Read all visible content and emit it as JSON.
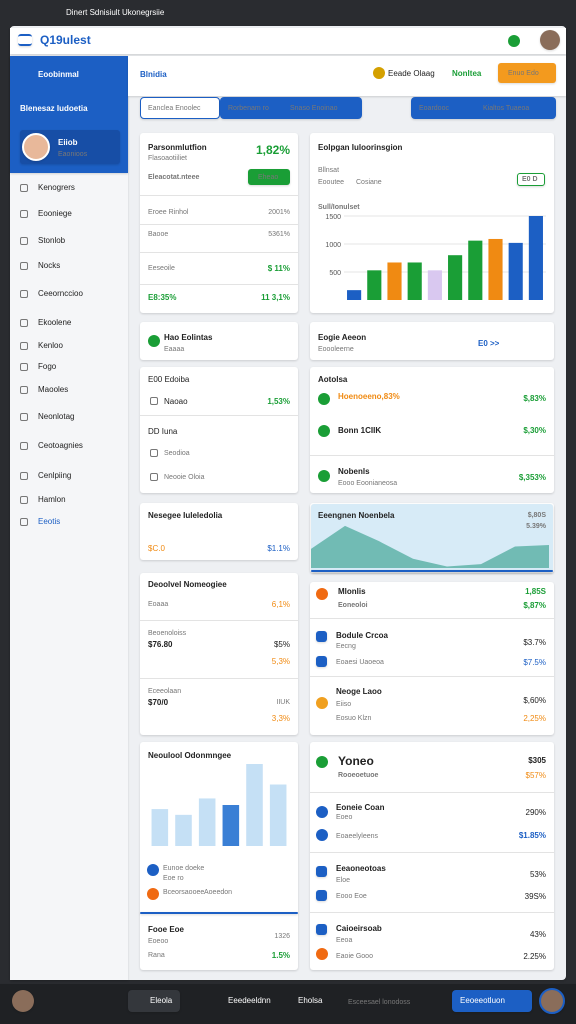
{
  "browser": {
    "tab": "Dinert Sdnisiult Ukonegrsiie"
  },
  "header": {
    "logo": "Q19ulest"
  },
  "sidebar": {
    "top": "Eoobinmal",
    "section": "Blenesaz Iudoetia",
    "profile_name": "Eiiob",
    "profile_sub": "Eaonioos",
    "items": [
      "Kenogrers",
      "Eooniege",
      "Stonlob",
      "Nocks",
      "Ceeornccioo",
      "Ekoolene",
      "Kenloo",
      "Fogo",
      "Maooles",
      "Neonlotag",
      "Ceotoagnies",
      "Cenlpiing",
      "Hamlon",
      "Eeotis"
    ]
  },
  "toolbar": {
    "title": "Blnidia",
    "tab_active": "Eanclea Enoolec",
    "tab_2": "Rorbenam ro",
    "tab_3": "Snaso Enoinao",
    "link_1": "Eeade Olaag",
    "link_2": "Nonltea",
    "button": "Enuo Edo",
    "select": "Eoardooc",
    "select_2": "Kialtos Tuaeoa"
  },
  "cards": {
    "l1": {
      "title": "Parsonmlutfion",
      "value": "1,82%",
      "sub": "Flasoaotiiliet",
      "link": "Eleacotat.nteee",
      "button": "Eheao",
      "rows": [
        [
          "Eroee Rinhol",
          "2001%"
        ],
        [
          "Baooe",
          "5361%"
        ],
        [
          "Eeseoile",
          "$ 11%"
        ]
      ],
      "foot": "E8:35%",
      "foot_value": "11 3,1%"
    },
    "r1": {
      "title": "Eolpgan Iuloorinsgion",
      "sub": "Bllnsat",
      "sub_2": "Eooutee",
      "sub_3": "Cosiane",
      "badge": "E0 D"
    },
    "l2": {
      "title": "Hao Eolintas",
      "sub": "Eaaaa"
    },
    "r2": {
      "title": "Eogie Aeeon",
      "sub": "Eoooleerne",
      "link": "E0 >>"
    },
    "l3": {
      "head_1": "E00 Edoiba",
      "item_1": "Naoao",
      "value_1": "1,53%",
      "head_2": "DD Iuna",
      "item_2": "Seodioa",
      "item_3": "Neooie Oloia"
    },
    "r3": {
      "title": "Aotolsa",
      "row_1": "Hoenoeeno,83%",
      "value_1": "$,83%",
      "row_2": "Bonn 1CIIK",
      "value_2": "$,30%",
      "row_3": "Nobenls",
      "value_3": "$,353%",
      "row_3_sub": "Eooo Eoonianeosa"
    },
    "l4": {
      "title": "Nesegee Iuleledolia",
      "left": "$C.0",
      "right": "$1.1%"
    },
    "r4": {
      "title": "Eeengnen Noenbela",
      "value": "$,80S",
      "value_2": "5.39%"
    },
    "l5": {
      "title": "Deoolvel Nomeogiee",
      "row_1": "Eoaaa",
      "value_1": "6,1%",
      "row_2": "Beoenoloiss",
      "amount_2": "$76.80",
      "value_2": "$5%",
      "value_2b": "5,3%",
      "row_3": "Eceeolaan",
      "amount_3": "$70/0",
      "value_3": "IIUK",
      "value_3b": "3,3%"
    },
    "r5": {
      "row_1": "Mlonlis",
      "value_1": "1,85S",
      "sub_1": "Eoneoloi",
      "value_1b": "$,87%",
      "row_2": "Bodule Crcoa",
      "sub_2": "Eecng",
      "value_2": "$3.7%",
      "row_2b": "Eoaesi Uaoeoa",
      "value_2b": "$7.5%",
      "row_3": "Neoge Laoo",
      "sub_3": "Eiiso",
      "value_3": "$,60%",
      "row_3b": "Eosuo Klzn",
      "value_3b": "2,25%"
    },
    "l6": {
      "title": "Neoulool Odonmngee",
      "item_1": "Eunoe doeke",
      "item_1_sub": "Eoe ro",
      "item_2": "Bceorsaooee",
      "item_2b": "Aoeedon",
      "row_1": "Fooe Eoe",
      "value_1": "1326",
      "row_1_sub": "Eoeoo",
      "row_2": "Rana",
      "value_2": "1.5%"
    },
    "r6": {
      "row_1": "Yoneo",
      "value_1": "$305",
      "sub_1": "Rooeoetuoe",
      "value_1b": "$57%",
      "row_2": "Eoneie Coan",
      "value_2": "290%",
      "sub_2": "Eoeo",
      "row_2b": "Eoaeelyleens",
      "value_2b": "$1.85%",
      "row_3": "Eeaoneotoas",
      "value_3": "53%",
      "sub_3": "Eloe",
      "row_3b": "Eooo Eoe",
      "value_3b": "39S%",
      "row_4": "Caioeirsoab",
      "value_4": "43%",
      "sub_4": "Eeoa",
      "row_4b": "Eaoie Gooo",
      "value_4b": "2.25%"
    }
  },
  "charts": {
    "summary": {
      "type": "bar",
      "title": "Sull/Ionulset",
      "values": [
        176,
        530,
        670,
        670,
        530,
        800,
        1060,
        1090,
        1020,
        1500
      ],
      "colors": [
        "#1c5fc4",
        "#1a9e36",
        "#f08a12",
        "#1a9e36",
        "#d9c8f0",
        "#1a9e36",
        "#1a9e36",
        "#f08a12",
        "#1c5fc4",
        "#1c5fc4"
      ],
      "ylim": [
        0,
        1500
      ],
      "yticks": [
        500,
        1000,
        1500
      ]
    },
    "trend": {
      "type": "area",
      "values": [
        25,
        55,
        35,
        12,
        2,
        5,
        28,
        30
      ],
      "ylim": [
        0,
        60
      ],
      "color": "#5fb3a8"
    },
    "weekly": {
      "type": "bar",
      "values": [
        45,
        38,
        58,
        50,
        100,
        75
      ],
      "colors": [
        "#c5e0f5",
        "#c5e0f5",
        "#c5e0f5",
        "#3a7fd5",
        "#c5e0f5",
        "#c5e0f5"
      ],
      "ylim": [
        0,
        100
      ]
    }
  },
  "taskbar": {
    "item_1": "Eleola",
    "item_2": "Eeedeeldnn",
    "item_3": "Eholsa",
    "item_4": "Esceesael lonodoss",
    "button": "Eeoeeotluon"
  }
}
